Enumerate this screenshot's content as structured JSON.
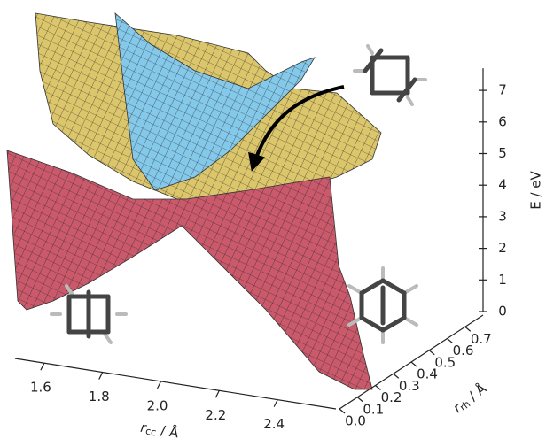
{
  "chart_data": {
    "type": "surface3d",
    "xlabel": {
      "symbol": "r",
      "sub": "cc",
      "unit": " / Å"
    },
    "ylabel": {
      "symbol": "r",
      "sub": "rh",
      "unit": " / Å"
    },
    "zlabel": "E / eV",
    "xlim": [
      1.5,
      2.6
    ],
    "xticks": [
      1.6,
      1.8,
      {
        "value": 2,
        "label": "2.0"
      },
      2.2,
      2.4
    ],
    "ylim": [
      0,
      0.8
    ],
    "yticks": [
      {
        "value": 0,
        "label": "0.0"
      },
      0.1,
      0.2,
      0.3,
      0.4,
      0.5,
      0.6,
      0.7
    ],
    "zlim": [
      0,
      7.7
    ],
    "zticks": [
      0,
      1,
      2,
      3,
      4,
      5,
      6,
      7
    ],
    "surfaces": [
      {
        "color": "#dcc66c"
      },
      {
        "color": "#84c8ea"
      },
      {
        "color": "#c9596b"
      }
    ]
  }
}
